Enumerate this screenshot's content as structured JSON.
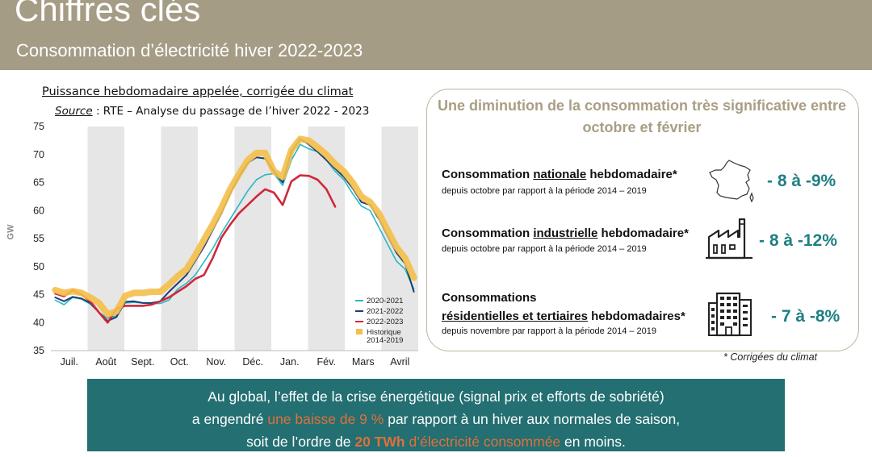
{
  "header": {
    "title": "Chiffres clés",
    "subtitle": "Consommation d’électricité hiver 2022-2023"
  },
  "chart_header": {
    "title": "Puissance hebdomadaire appelée, corrigée du climat",
    "source_label": "Source",
    "source_text": " : RTE – Analyse du passage de l’hiver 2022 - 2023"
  },
  "colors": {
    "s2020": "#2ab7c4",
    "s2021": "#1d3f73",
    "s2022": "#d0283a",
    "hist": "#f4bf4a",
    "stripe": "#e6e6e6",
    "accent": "#1f7f83",
    "header_bg": "#a59c86",
    "banner_bg": "#236f72",
    "highlight": "#e0703a"
  },
  "chart_data": {
    "type": "line",
    "title": "Puissance hebdomadaire appelée, corrigée du climat",
    "ylabel": "GW",
    "ylim": [
      35,
      75
    ],
    "yticks": [
      35,
      40,
      45,
      50,
      55,
      60,
      65,
      70,
      75
    ],
    "months": [
      "Juil.",
      "Août",
      "Sept.",
      "Oct.",
      "Nov.",
      "Déc.",
      "Jan.",
      "Fév.",
      "Mars",
      "Avril"
    ],
    "x_unit": "week index starting early July",
    "series": [
      {
        "name": "2020-2021",
        "key": "s2020",
        "x": [
          0,
          1,
          2,
          3,
          4,
          5,
          6,
          7,
          8,
          9,
          10,
          11,
          12,
          13,
          14,
          15,
          16,
          17,
          18,
          19,
          20,
          21,
          22,
          23,
          24,
          25,
          26,
          27,
          28,
          29,
          30,
          31,
          32,
          33,
          34,
          35,
          36,
          37,
          38,
          39,
          40,
          41
        ],
        "values": [
          44.0,
          43.2,
          44.5,
          44.2,
          43.3,
          41.8,
          40.8,
          41.2,
          43.5,
          43.6,
          43.5,
          43.4,
          43.4,
          44.0,
          46.0,
          47.0,
          48.5,
          50.8,
          53.2,
          56.0,
          58.5,
          61.0,
          63.5,
          65.5,
          66.4,
          66.6,
          64.5,
          69.0,
          71.8,
          71.0,
          70.5,
          69.0,
          67.0,
          65.5,
          63.0,
          60.8,
          60.0,
          57.0,
          54.0,
          51.0,
          49.5,
          46.0
        ]
      },
      {
        "name": "2021-2022",
        "key": "s2021",
        "x": [
          0,
          1,
          2,
          3,
          4,
          5,
          6,
          7,
          8,
          9,
          10,
          11,
          12,
          13,
          14,
          15,
          16,
          17,
          18,
          19,
          20,
          21,
          22,
          23,
          24,
          25,
          26,
          27,
          28,
          29,
          30,
          31,
          32,
          33,
          34,
          35,
          36,
          37,
          38,
          39,
          40,
          41
        ],
        "values": [
          44.5,
          43.8,
          44.6,
          44.3,
          43.5,
          41.8,
          40.3,
          41.0,
          43.7,
          43.8,
          43.5,
          43.5,
          43.8,
          45.5,
          47.0,
          48.5,
          51.0,
          53.5,
          56.5,
          59.5,
          63.0,
          66.0,
          68.5,
          69.5,
          69.3,
          67.0,
          65.0,
          70.5,
          72.8,
          71.8,
          70.5,
          69.0,
          67.5,
          66.0,
          64.0,
          61.5,
          61.0,
          58.5,
          55.5,
          52.5,
          50.5,
          45.5
        ]
      },
      {
        "name": "2022-2023",
        "key": "s2022",
        "x": [
          0,
          1,
          2,
          3,
          4,
          5,
          6,
          7,
          8,
          9,
          10,
          11,
          12,
          13,
          14,
          15,
          16,
          17,
          18,
          19,
          20,
          21,
          22,
          23,
          24,
          25,
          26,
          27,
          28,
          29,
          30,
          31,
          32
        ],
        "values": [
          45.2,
          44.7,
          45.8,
          45.0,
          43.8,
          41.8,
          40.0,
          42.5,
          43.0,
          43.0,
          43.0,
          43.2,
          43.8,
          44.5,
          45.5,
          46.5,
          47.8,
          48.5,
          51.5,
          55.2,
          57.5,
          59.5,
          61.0,
          62.5,
          63.8,
          63.2,
          61.0,
          65.2,
          66.3,
          66.2,
          65.5,
          63.8,
          60.7
        ]
      },
      {
        "name": "Historique 2014-2019",
        "key": "hist",
        "x": [
          0,
          1,
          2,
          3,
          4,
          5,
          6,
          7,
          8,
          9,
          10,
          11,
          12,
          13,
          14,
          15,
          16,
          17,
          18,
          19,
          20,
          21,
          22,
          23,
          24,
          25,
          26,
          27,
          28,
          29,
          30,
          31,
          32,
          33,
          34,
          35,
          36,
          37,
          38,
          39,
          40,
          41
        ],
        "values": [
          45.8,
          45.3,
          45.6,
          45.3,
          44.5,
          43.5,
          41.5,
          42.0,
          44.8,
          45.3,
          45.3,
          45.5,
          45.5,
          46.8,
          48.3,
          49.5,
          52.0,
          54.8,
          57.5,
          60.5,
          63.8,
          66.5,
          69.0,
          70.3,
          70.3,
          67.0,
          66.0,
          70.8,
          72.8,
          72.5,
          71.3,
          70.0,
          68.3,
          67.0,
          65.0,
          62.5,
          61.5,
          59.5,
          56.5,
          53.5,
          51.5,
          48.0
        ]
      }
    ],
    "legend_placement": "bottom-right",
    "grid": false
  },
  "legend": [
    {
      "label": "2020-2021",
      "key": "s2020",
      "kind": "line"
    },
    {
      "label": "2021-2022",
      "key": "s2021",
      "kind": "line"
    },
    {
      "label": "2022-2023",
      "key": "s2022",
      "kind": "line"
    },
    {
      "label": "Historique\n2014-2019",
      "key": "hist",
      "kind": "box"
    }
  ],
  "panel": {
    "heading": "Une diminution de la consommation très significative entre octobre et février",
    "metrics": [
      {
        "label_pre": "Consommation ",
        "label_u": "nationale",
        "label_post": " hebdomadaire*",
        "sub": "depuis octobre par rapport à la période 2014 – 2019",
        "value": "- 8 à -9%",
        "icon": "france-map-icon"
      },
      {
        "label_pre": "Consommation ",
        "label_u": "industrielle",
        "label_post": " hebdomadaire*",
        "sub": "depuis octobre par rapport à la période 2014 – 2019",
        "value": "- 8 à -12%",
        "icon": "factory-icon"
      },
      {
        "label_line1": "Consommations",
        "label_u": "résidentielles et tertiaires",
        "label_post": " hebdomadaires*",
        "sub": "depuis novembre par rapport à la période 2014 – 2019",
        "value": "- 7 à -8%",
        "icon": "building-icon"
      }
    ],
    "footnote": "* Corrigées du climat"
  },
  "banner": {
    "line1": "Au global, l’effet de la crise énergétique (signal prix et efforts de sobriété)",
    "line2_pre": "a engendré ",
    "line2_hl": "une baisse de 9 %",
    "line2_post": " par rapport à un hiver aux normales de saison,",
    "line3_pre": "soit de l’ordre de ",
    "line3_hl_bold": "20 TWh",
    "line3_hl": " d’électricité consommée",
    "line3_post": " en moins."
  }
}
